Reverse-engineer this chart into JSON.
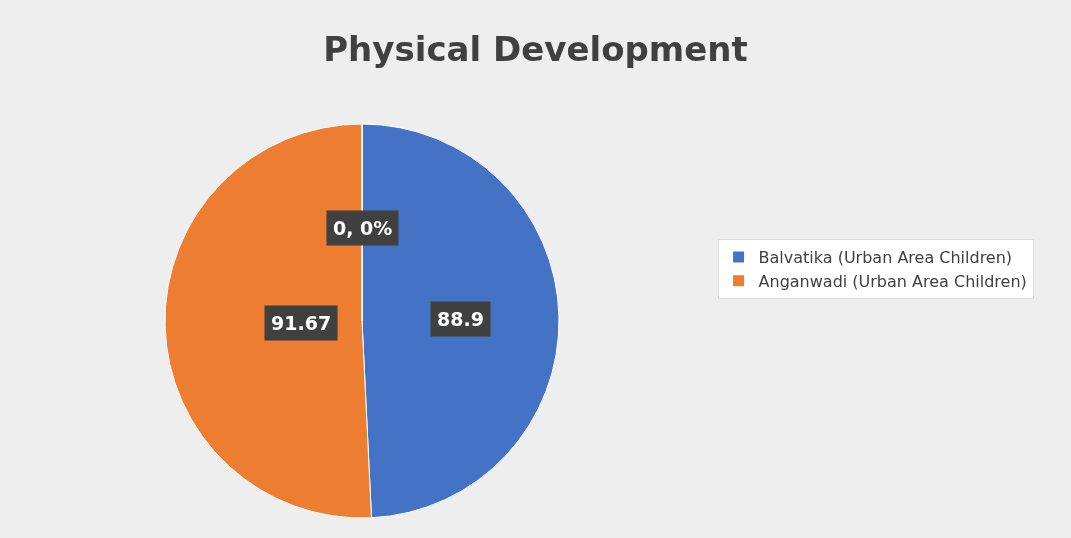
{
  "chart_data": {
    "type": "pie",
    "title": "Physical Development",
    "categories": [
      "Balvatika (Urban Area Children)",
      "Anganwadi (Urban Area Children)",
      null
    ],
    "values": [
      88.9,
      91.67,
      0
    ],
    "colors": [
      "#4472c4",
      "#ed7d31",
      "#a5a5a5"
    ],
    "value_labels": [
      "88.9",
      "91.67",
      "0, 0%"
    ],
    "legend": "right"
  }
}
